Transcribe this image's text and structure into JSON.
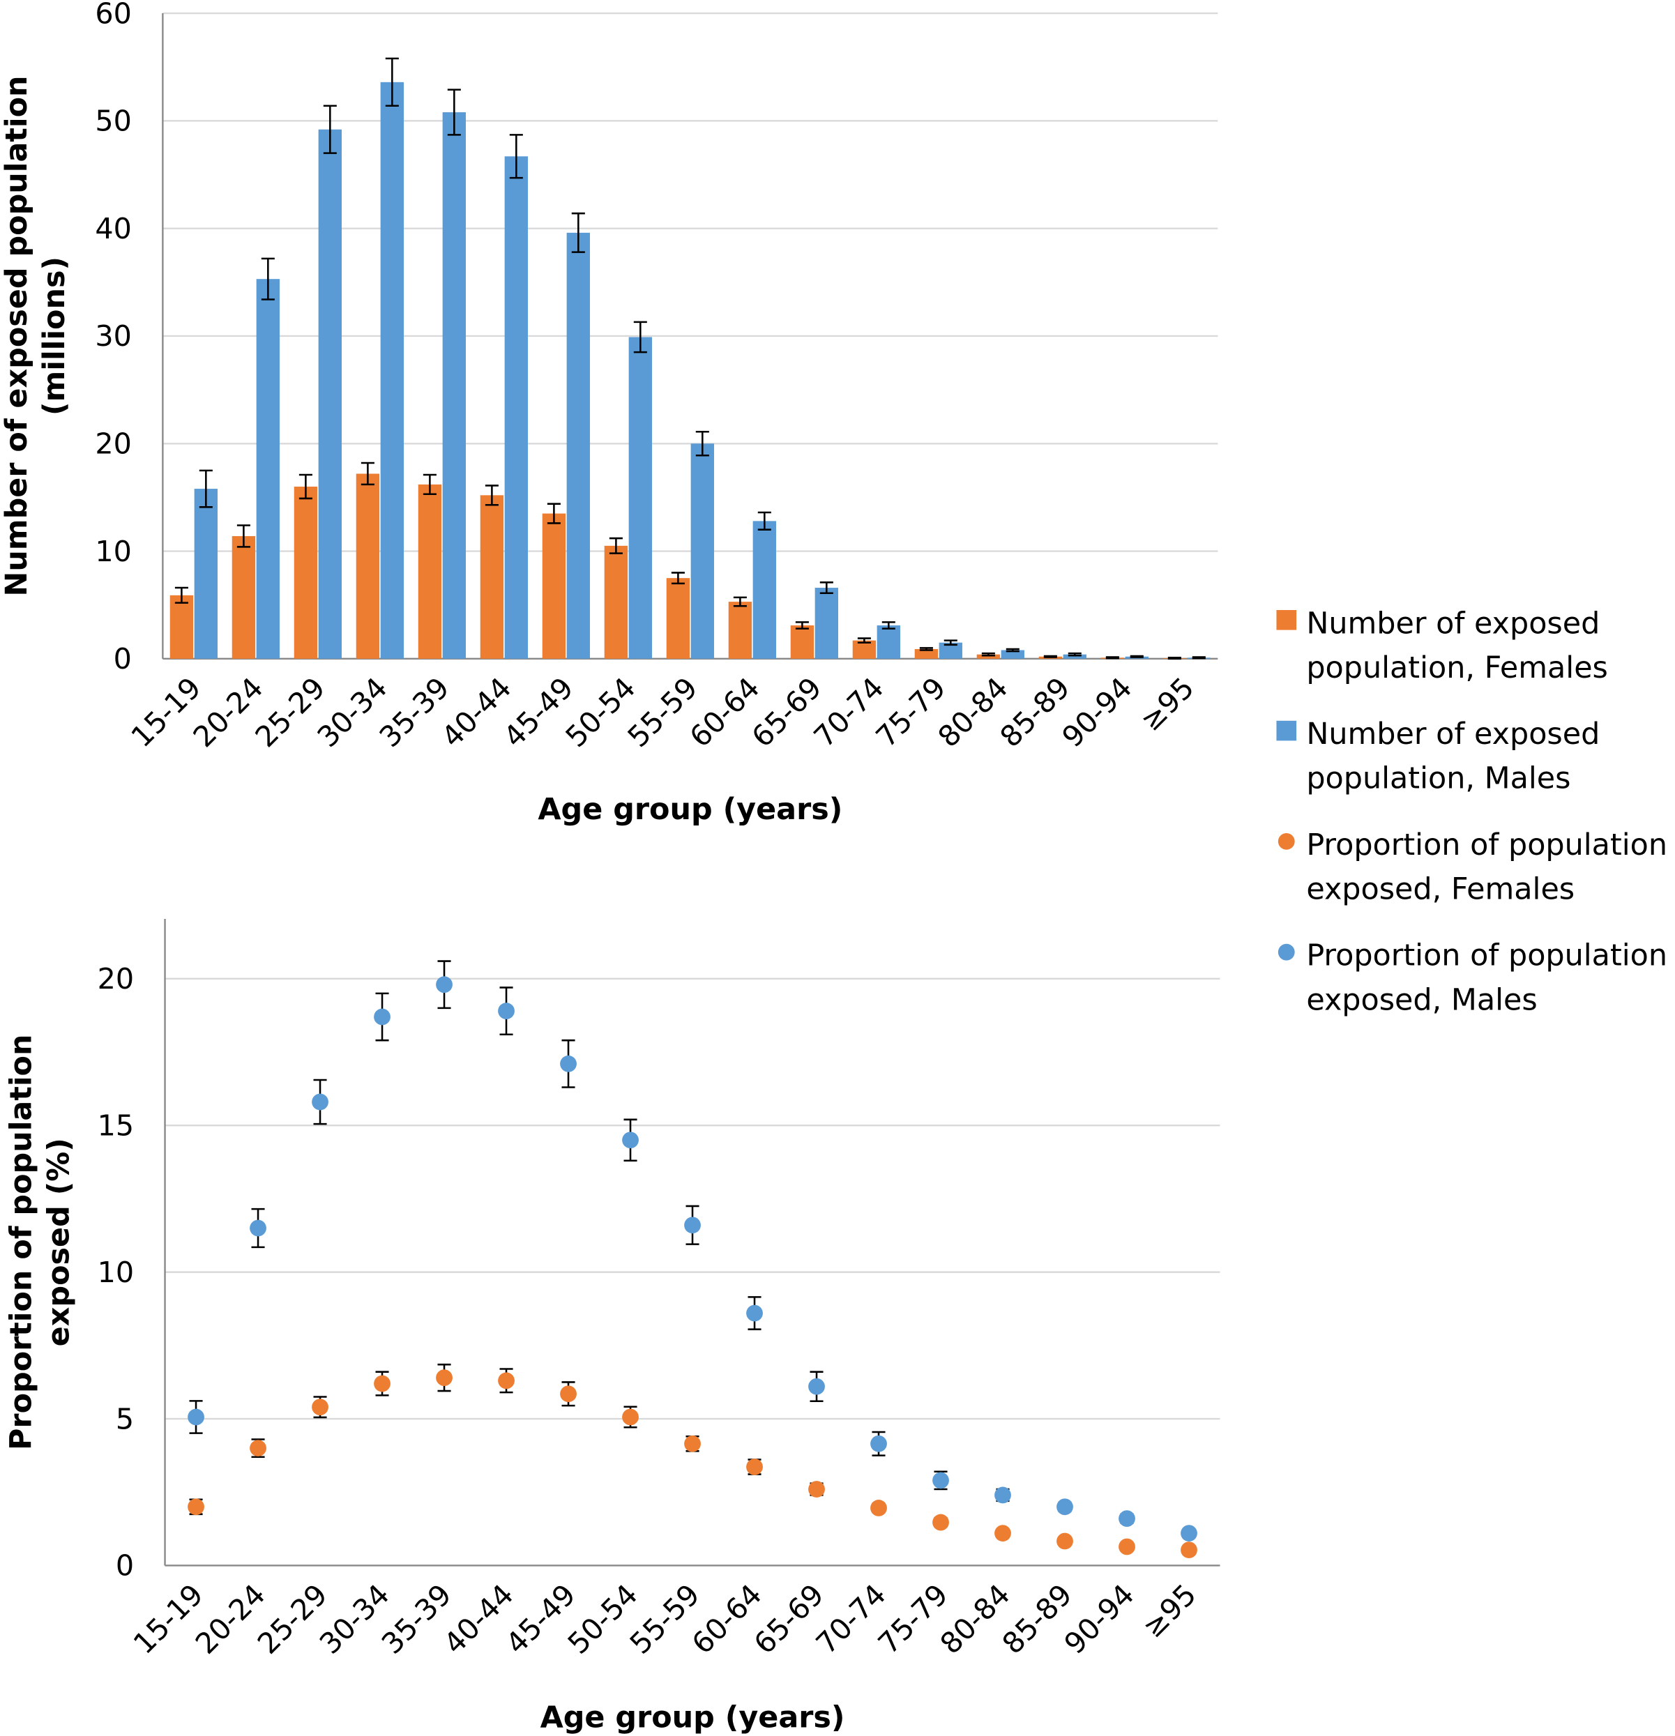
{
  "colors": {
    "females": "#ED7D31",
    "males": "#5B9BD5"
  },
  "legend": {
    "position": "right",
    "items": [
      {
        "lines": [
          "Number of exposed",
          "population, Females"
        ],
        "marker": "square",
        "color": "#ED7D31"
      },
      {
        "lines": [
          "Number of exposed",
          "population, Males"
        ],
        "marker": "square",
        "color": "#5B9BD5"
      },
      {
        "lines": [
          "Proportion of population",
          "exposed, Females"
        ],
        "marker": "circle",
        "color": "#ED7D31"
      },
      {
        "lines": [
          "Proportion of population",
          "exposed, Males"
        ],
        "marker": "circle",
        "color": "#5B9BD5"
      }
    ]
  },
  "chart_data": [
    {
      "type": "bar",
      "xlabel": "Age group (years)",
      "ylabel_lines": [
        "Number of exposed population",
        "(millions)"
      ],
      "ylim": [
        0,
        60
      ],
      "yticks": [
        "0",
        "10",
        "20",
        "30",
        "40",
        "50",
        "60"
      ],
      "grid": true,
      "categories": [
        "15-19",
        "20-24",
        "25-29",
        "30-34",
        "35-39",
        "40-44",
        "45-49",
        "50-54",
        "55-59",
        "60-64",
        "65-69",
        "70-74",
        "75-79",
        "80-84",
        "85-89",
        "90-94",
        "≥95"
      ],
      "series": [
        {
          "name": "Number of exposed population, Females",
          "values": [
            5.9,
            11.4,
            16.0,
            17.2,
            16.2,
            15.2,
            13.5,
            10.5,
            7.5,
            5.3,
            3.1,
            1.7,
            0.9,
            0.4,
            0.2,
            0.1,
            0.05
          ],
          "error": [
            0.7,
            1.0,
            1.1,
            1.0,
            0.9,
            0.9,
            0.9,
            0.7,
            0.5,
            0.4,
            0.3,
            0.2,
            0.1,
            0.1,
            0.05,
            0.05,
            0.05
          ]
        },
        {
          "name": "Number of exposed population, Males",
          "values": [
            15.8,
            35.3,
            49.2,
            53.6,
            50.8,
            46.7,
            39.6,
            29.9,
            20.0,
            12.8,
            6.6,
            3.1,
            1.5,
            0.8,
            0.4,
            0.2,
            0.1
          ],
          "error": [
            1.7,
            1.9,
            2.2,
            2.2,
            2.1,
            2.0,
            1.8,
            1.4,
            1.1,
            0.8,
            0.5,
            0.3,
            0.2,
            0.1,
            0.1,
            0.05,
            0.05
          ]
        }
      ]
    },
    {
      "type": "scatter",
      "xlabel": "Age group (years)",
      "ylabel_lines": [
        "Proportion of population",
        "exposed (%)"
      ],
      "ylim": [
        0,
        22
      ],
      "yticks": [
        "0",
        "5",
        "10",
        "15",
        "20"
      ],
      "grid": true,
      "categories": [
        "15-19",
        "20-24",
        "25-29",
        "30-34",
        "35-39",
        "40-44",
        "45-49",
        "50-54",
        "55-59",
        "60-64",
        "65-69",
        "70-74",
        "75-79",
        "80-84",
        "85-89",
        "90-94",
        "≥95"
      ],
      "series": [
        {
          "name": "Proportion of population exposed, Females",
          "values": [
            2.0,
            4.0,
            5.4,
            6.2,
            6.4,
            6.3,
            5.85,
            5.06,
            4.15,
            3.36,
            2.6,
            1.96,
            1.47,
            1.1,
            0.83,
            0.64,
            0.53
          ],
          "error": [
            0.25,
            0.3,
            0.35,
            0.4,
            0.45,
            0.4,
            0.4,
            0.35,
            0.25,
            0.25,
            0.2,
            0.15,
            0.15,
            0.12,
            0.1,
            0.1,
            0.1
          ]
        },
        {
          "name": "Proportion of population exposed, Males",
          "values": [
            5.06,
            11.5,
            15.8,
            18.7,
            19.8,
            18.9,
            17.1,
            14.5,
            11.6,
            8.6,
            6.1,
            4.15,
            2.9,
            2.4,
            2.0,
            1.6,
            1.1
          ],
          "error": [
            0.55,
            0.65,
            0.75,
            0.8,
            0.8,
            0.8,
            0.8,
            0.7,
            0.65,
            0.55,
            0.5,
            0.4,
            0.3,
            0.2,
            0.15,
            0.15,
            0.1
          ]
        }
      ]
    }
  ]
}
